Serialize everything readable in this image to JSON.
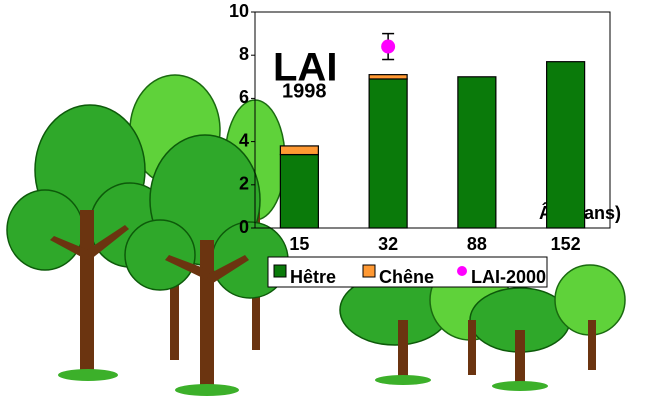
{
  "chart_data": {
    "type": "bar",
    "stacked": true,
    "title": "LAI",
    "subtitle": "1998",
    "x_label": "Âge (ans)",
    "categories": [
      "15",
      "32",
      "88",
      "152"
    ],
    "series": [
      {
        "name": "Hêtre",
        "color": "#0a7a0a",
        "values": [
          3.4,
          6.9,
          7.0,
          7.7
        ]
      },
      {
        "name": "Chêne",
        "color": "#ff9933",
        "values": [
          0.4,
          0.2,
          0,
          0
        ]
      },
      {
        "name": "LAI-2000",
        "color": "#ff00ff",
        "kind": "point",
        "values": [
          null,
          8.4,
          null,
          null
        ],
        "errors": [
          null,
          0.6,
          null,
          null
        ]
      }
    ],
    "ylim": [
      0,
      10
    ],
    "yticks": [
      0,
      2,
      4,
      6,
      8,
      10
    ],
    "grid": false
  }
}
